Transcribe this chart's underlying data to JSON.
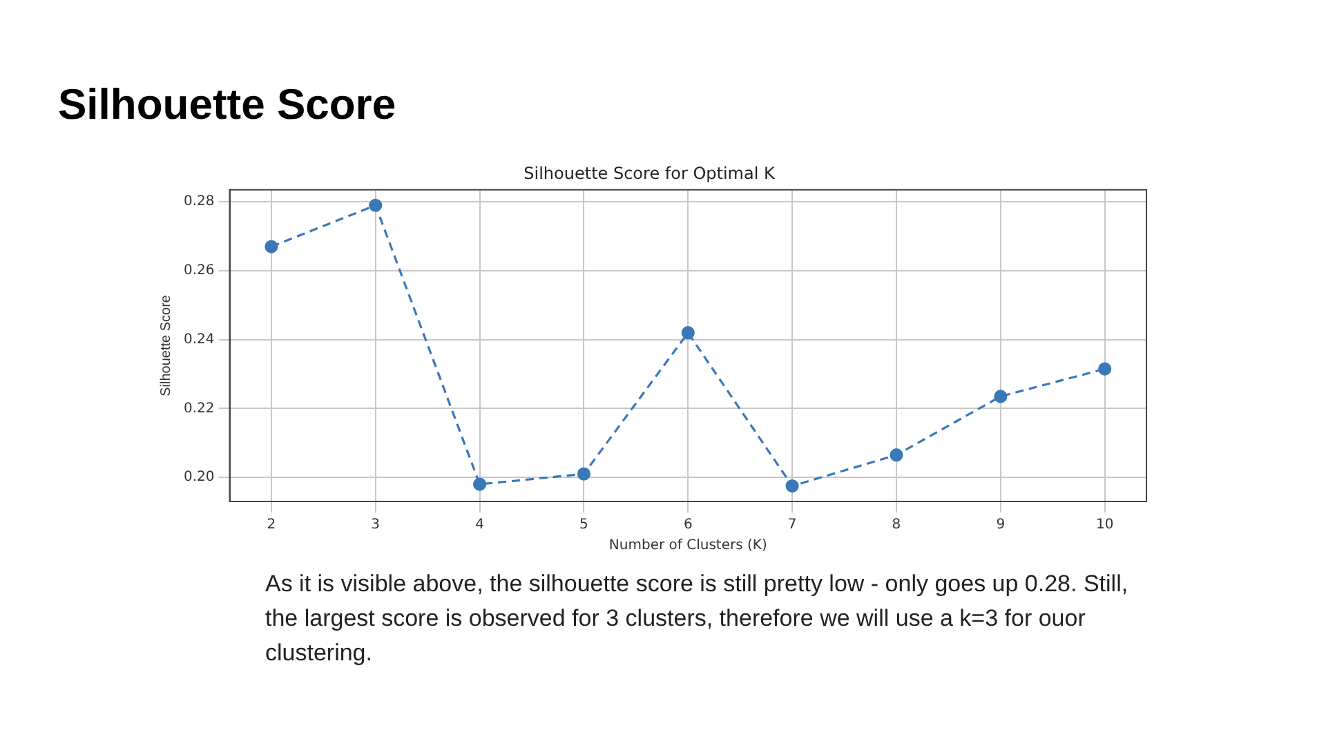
{
  "chart_data": {
    "type": "line",
    "title": "Silhouette Score",
    "subtitle": "Silhouette Score for Optimal K",
    "xlabel": "Number of Clusters (K)",
    "ylabel": "Silhouette Score",
    "x": [
      2,
      3,
      4,
      5,
      6,
      7,
      8,
      9,
      10
    ],
    "series": [
      {
        "color": "#3a78b8",
        "values": [
          0.267,
          0.279,
          0.198,
          0.201,
          0.242,
          0.1975,
          0.2065,
          0.2235,
          0.2315
        ]
      }
    ],
    "xlim": [
      1.6,
      10.4
    ],
    "xticks": [
      2,
      3,
      4,
      5,
      6,
      7,
      8,
      9,
      10
    ],
    "ylim": [
      0.193,
      0.2835
    ],
    "yticks": [
      {
        "value": 0.2,
        "label": "0.20"
      },
      {
        "value": 0.22,
        "label": "0.22"
      },
      {
        "value": 0.24,
        "label": "0.24"
      },
      {
        "value": 0.26,
        "label": "0.26"
      },
      {
        "value": 0.28,
        "label": "0.28"
      }
    ],
    "grid": true,
    "marker": "circle",
    "line_style": "dashed",
    "legend": false,
    "annotations": [
      "As it is visible above, the silhouette score is still pretty low - only goes up 0.28. Still, the largest score is observed for 3 clusters, therefore we will use a k=3 for ouor clustering."
    ]
  }
}
